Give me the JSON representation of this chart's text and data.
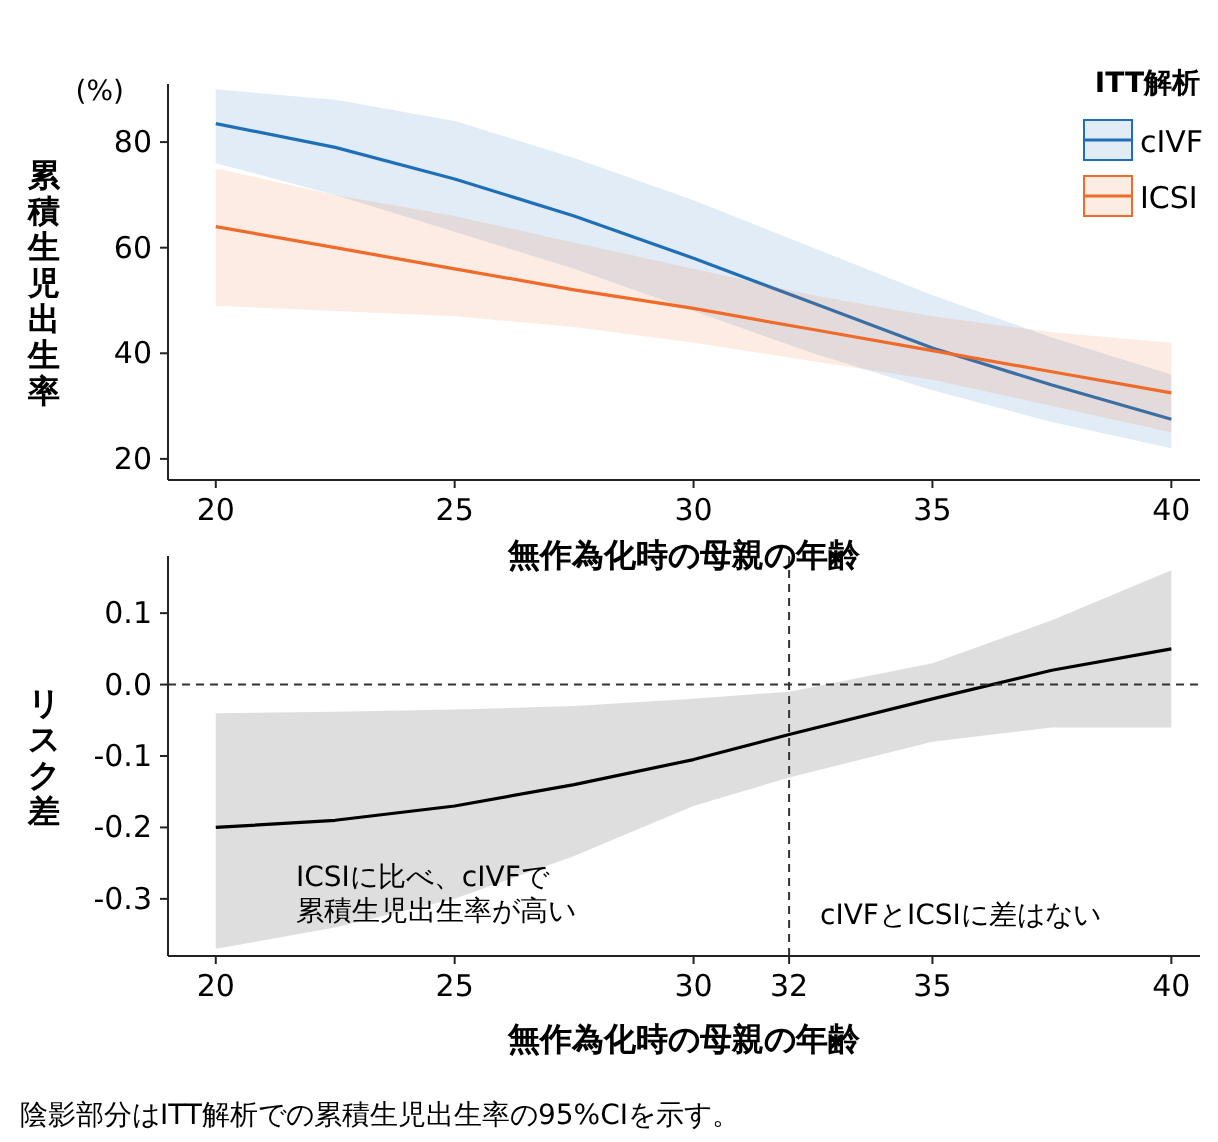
{
  "chart_data": [
    {
      "type": "line",
      "xlabel": "無作為化時の母親の年齢",
      "ylabel": "累積生児出生率",
      "legend_title": "ITT解析",
      "legend": "top right",
      "annotations": [
        "(%)"
      ],
      "x": [
        20,
        22.5,
        25,
        27.5,
        30,
        32.5,
        35,
        37.5,
        40
      ],
      "xlim": [
        19,
        40.6
      ],
      "ylim": [
        16,
        91
      ],
      "xticks": [
        20,
        25,
        30,
        35,
        40
      ],
      "yticks": [
        20,
        40,
        60,
        80
      ],
      "series": [
        {
          "name": "cIVF",
          "color": "#1f6fb8",
          "values": [
            83.5,
            79,
            73,
            66,
            58,
            49.5,
            41,
            34,
            27.5
          ],
          "lower": [
            76,
            70,
            63,
            56,
            48,
            40,
            33,
            27,
            22
          ],
          "upper": [
            90,
            88,
            84,
            77,
            69,
            60,
            51,
            43,
            36
          ]
        },
        {
          "name": "ICSI",
          "color": "#f06a2a",
          "values": [
            64,
            60,
            56,
            52,
            48.5,
            44.5,
            40.5,
            36.5,
            32.5
          ],
          "lower": [
            49,
            48,
            47,
            45,
            42,
            38.5,
            35,
            30,
            25
          ],
          "upper": [
            75,
            70,
            66,
            61,
            56,
            51,
            47,
            44,
            42
          ]
        }
      ]
    },
    {
      "type": "line",
      "xlabel": "無作為化時の母親の年齢",
      "ylabel": "リスク差",
      "annotations": [
        "ICSIに比べ、cIVFで累積生児出生率が高い",
        "cIVFとICSIに差はない",
        "陰影部分はITT解析での累積生児出生率の95%CIを示す。"
      ],
      "x": [
        20,
        22.5,
        25,
        27.5,
        30,
        32,
        35,
        37.5,
        40
      ],
      "xlim": [
        19,
        40.6
      ],
      "ylim": [
        -0.38,
        0.18
      ],
      "xticks": [
        20,
        25,
        30,
        32,
        35,
        40
      ],
      "yticks": [
        0.1,
        {
          "value": 0,
          "label": "0.0"
        },
        -0.1,
        -0.2,
        -0.3
      ],
      "ref_lines": [
        {
          "axis": "y",
          "value": 0,
          "line_style": "dashed"
        },
        {
          "axis": "x",
          "value": 32,
          "line_style": "dashed"
        }
      ],
      "series": [
        {
          "color": "#000000",
          "values": [
            -0.2,
            -0.19,
            -0.17,
            -0.14,
            -0.105,
            -0.07,
            -0.02,
            0.02,
            0.05
          ],
          "lower": [
            -0.37,
            -0.34,
            -0.3,
            -0.24,
            -0.17,
            -0.13,
            -0.08,
            -0.06,
            -0.06
          ],
          "upper": [
            -0.04,
            -0.038,
            -0.035,
            -0.03,
            -0.02,
            -0.01,
            0.03,
            0.09,
            0.16
          ]
        }
      ]
    }
  ]
}
